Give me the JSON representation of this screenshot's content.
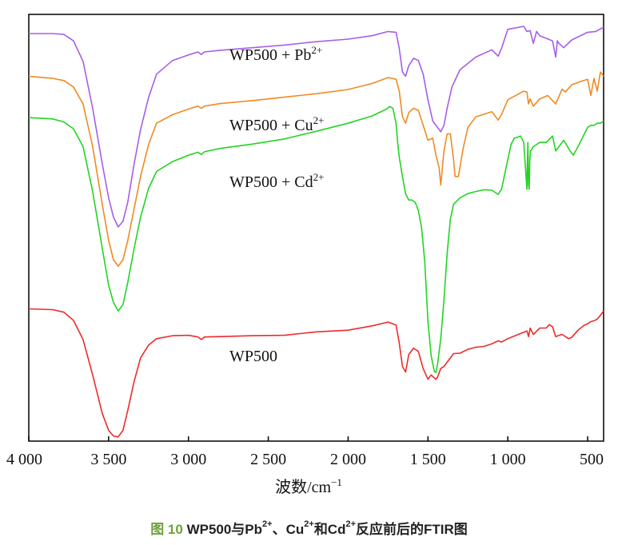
{
  "chart_data": {
    "type": "line",
    "title": "",
    "xlabel": "波数/cm",
    "xlabel_superscript": "−1",
    "ylabel": "",
    "xlim": [
      4000,
      400
    ],
    "x_inverted": true,
    "x_ticks": [
      4000,
      3500,
      3000,
      2500,
      2000,
      1500,
      1000,
      500
    ],
    "x_tick_labels": [
      "4 000",
      "3 500",
      "3 000",
      "2 500",
      "2 000",
      "1 500",
      "1 000",
      "500"
    ],
    "y_axis": "transmittance (offset, unlabeled)",
    "ylim": [
      0,
      100
    ],
    "series": [
      {
        "name": "WP500 + Pb",
        "superscript": "2+",
        "color": "#a65ee8",
        "x": [
          4000,
          3850,
          3780,
          3720,
          3660,
          3600,
          3540,
          3500,
          3470,
          3440,
          3410,
          3380,
          3340,
          3300,
          3250,
          3200,
          3100,
          3000,
          2940,
          2920,
          2900,
          2800,
          2600,
          2400,
          2200,
          2000,
          1850,
          1750,
          1700,
          1680,
          1660,
          1640,
          1620,
          1590,
          1560,
          1530,
          1500,
          1470,
          1440,
          1420,
          1400,
          1380,
          1350,
          1300,
          1200,
          1100,
          1060,
          1040,
          1000,
          900,
          880,
          860,
          840,
          820,
          800,
          720,
          700,
          690,
          680,
          650,
          600,
          500,
          450,
          400
        ],
        "y": [
          95.5,
          95.5,
          95.3,
          93.8,
          89,
          78,
          65,
          57,
          52.5,
          50.2,
          51.5,
          56,
          65,
          73,
          80.5,
          86,
          89.2,
          90.5,
          91.2,
          90.6,
          91.2,
          91.6,
          92.2,
          92.8,
          93.6,
          94.2,
          95,
          96,
          95.8,
          92,
          86.5,
          85.5,
          88,
          89.7,
          89.2,
          86,
          80,
          75,
          73.5,
          72.5,
          74,
          78,
          83,
          87,
          90,
          91.7,
          90.2,
          92,
          96.5,
          97.2,
          96,
          96.2,
          93.2,
          96,
          95,
          93.8,
          90,
          93.8,
          93.2,
          92.2,
          94,
          95.8,
          96,
          97
        ]
      },
      {
        "name": "WP500 + Cu",
        "superscript": "2+",
        "color": "#f08a24",
        "x": [
          4000,
          3850,
          3780,
          3720,
          3660,
          3600,
          3540,
          3500,
          3470,
          3440,
          3410,
          3380,
          3340,
          3300,
          3250,
          3200,
          3100,
          3000,
          2940,
          2920,
          2900,
          2800,
          2600,
          2400,
          2200,
          2000,
          1850,
          1750,
          1700,
          1680,
          1660,
          1640,
          1620,
          1590,
          1560,
          1530,
          1500,
          1470,
          1450,
          1430,
          1420,
          1400,
          1380,
          1360,
          1340,
          1330,
          1310,
          1280,
          1250,
          1200,
          1100,
          1060,
          1040,
          1000,
          900,
          880,
          870,
          860,
          840,
          800,
          750,
          700,
          660,
          640,
          600,
          550,
          500,
          480,
          460,
          440,
          420,
          400
        ],
        "y": [
          85.5,
          85,
          84.5,
          83,
          79,
          69,
          55.5,
          47,
          42.5,
          41,
          42.5,
          47,
          54.5,
          62,
          69.5,
          74.5,
          76.5,
          77.8,
          78.5,
          78,
          78.5,
          79.1,
          79.8,
          80.6,
          81.4,
          82.4,
          83.8,
          85.2,
          84.8,
          82,
          76,
          74.5,
          77,
          78,
          77.5,
          74,
          70.5,
          71,
          67,
          64,
          60,
          68,
          72,
          72,
          66,
          62,
          62,
          68.5,
          73.5,
          76,
          77.2,
          75.2,
          76.5,
          80,
          82,
          81.8,
          79,
          80.2,
          78.5,
          80.2,
          81,
          79,
          82.5,
          81.8,
          83.5,
          84.2,
          84.8,
          81,
          85,
          82,
          86.5,
          85.5
        ]
      },
      {
        "name": "WP500 + Cd",
        "superscript": "2+",
        "color": "#22d422",
        "x": [
          4000,
          3850,
          3780,
          3720,
          3660,
          3600,
          3540,
          3500,
          3470,
          3440,
          3410,
          3380,
          3340,
          3300,
          3250,
          3200,
          3100,
          3000,
          2940,
          2920,
          2900,
          2800,
          2600,
          2400,
          2200,
          2000,
          1850,
          1760,
          1740,
          1720,
          1700,
          1690,
          1680,
          1660,
          1640,
          1620,
          1600,
          1580,
          1560,
          1540,
          1520,
          1500,
          1480,
          1460,
          1450,
          1440,
          1420,
          1400,
          1380,
          1360,
          1340,
          1300,
          1250,
          1200,
          1150,
          1100,
          1060,
          1050,
          1040,
          1020,
          1000,
          980,
          960,
          940,
          920,
          900,
          880,
          878,
          874,
          870,
          866,
          862,
          858,
          840,
          800,
          780,
          760,
          720,
          700,
          680,
          650,
          610,
          590,
          560,
          520,
          500,
          480,
          460,
          440,
          420,
          400
        ],
        "y": [
          75.8,
          75.5,
          74.8,
          73.2,
          69,
          58.5,
          45.2,
          36.5,
          32.5,
          30.5,
          32,
          37.2,
          45.2,
          52.5,
          59.2,
          63.2,
          65.5,
          67,
          67.7,
          67.2,
          67.8,
          68.6,
          69.6,
          70.8,
          72.6,
          74.5,
          76.2,
          77.8,
          78.4,
          78,
          74.5,
          70,
          66.5,
          62,
          58,
          56.5,
          56.5,
          56,
          54,
          50,
          42,
          28,
          20,
          16.3,
          16.1,
          18,
          24,
          33,
          44,
          52,
          55.5,
          57,
          58,
          58.5,
          58.9,
          58.8,
          57.8,
          58.5,
          58.9,
          62.5,
          66,
          69.5,
          71,
          71.2,
          71.5,
          70,
          59,
          64,
          70,
          60,
          59,
          66,
          68,
          69,
          70,
          70,
          70,
          71.5,
          68,
          69,
          70.5,
          68,
          67,
          69,
          72,
          73.5,
          74,
          74,
          74.5,
          74.5,
          75
        ]
      },
      {
        "name": "WP500",
        "superscript": "",
        "color": "#ee2a2a",
        "x": [
          4000,
          3850,
          3780,
          3720,
          3660,
          3600,
          3540,
          3500,
          3470,
          3440,
          3410,
          3380,
          3340,
          3300,
          3250,
          3200,
          3100,
          3000,
          2940,
          2920,
          2900,
          2800,
          2600,
          2400,
          2200,
          2000,
          1850,
          1750,
          1700,
          1680,
          1660,
          1640,
          1620,
          1590,
          1560,
          1530,
          1500,
          1480,
          1460,
          1450,
          1440,
          1420,
          1400,
          1380,
          1360,
          1340,
          1300,
          1250,
          1200,
          1150,
          1100,
          1060,
          1040,
          1000,
          900,
          880,
          870,
          860,
          840,
          800,
          760,
          740,
          720,
          700,
          680,
          660,
          620,
          600,
          560,
          520,
          500,
          480,
          460,
          440,
          420,
          400
        ],
        "y": [
          31,
          30.8,
          30.2,
          28.3,
          23.8,
          15.5,
          6.5,
          2.5,
          1.2,
          1,
          2.5,
          7.2,
          14,
          19.5,
          22.5,
          24,
          24.7,
          24.8,
          24.4,
          23.8,
          24.4,
          24.5,
          24.7,
          24.8,
          25.6,
          26,
          27,
          27.9,
          27.2,
          23,
          17.5,
          16.2,
          20.3,
          21.8,
          21,
          17,
          14.5,
          15.5,
          14.8,
          14.5,
          15,
          17,
          17.5,
          18.5,
          19.5,
          20.5,
          20.6,
          21.5,
          22,
          22.2,
          22.8,
          23.5,
          23.2,
          24,
          25.5,
          25.8,
          24.5,
          26.5,
          25,
          26.5,
          26.5,
          27.3,
          26.8,
          24.5,
          24.8,
          25,
          24,
          24.3,
          26,
          27.2,
          27.5,
          28,
          28.2,
          28.6,
          29.5,
          30.5
        ]
      }
    ]
  },
  "caption": {
    "figure_label": "图 10",
    "text_1": "WP500与Pb",
    "sup_1": "2+",
    "text_2": "、Cu",
    "sup_2": "2+",
    "text_3": "和Cd",
    "sup_3": "2+",
    "text_4": "反应前后的FTIR图"
  }
}
